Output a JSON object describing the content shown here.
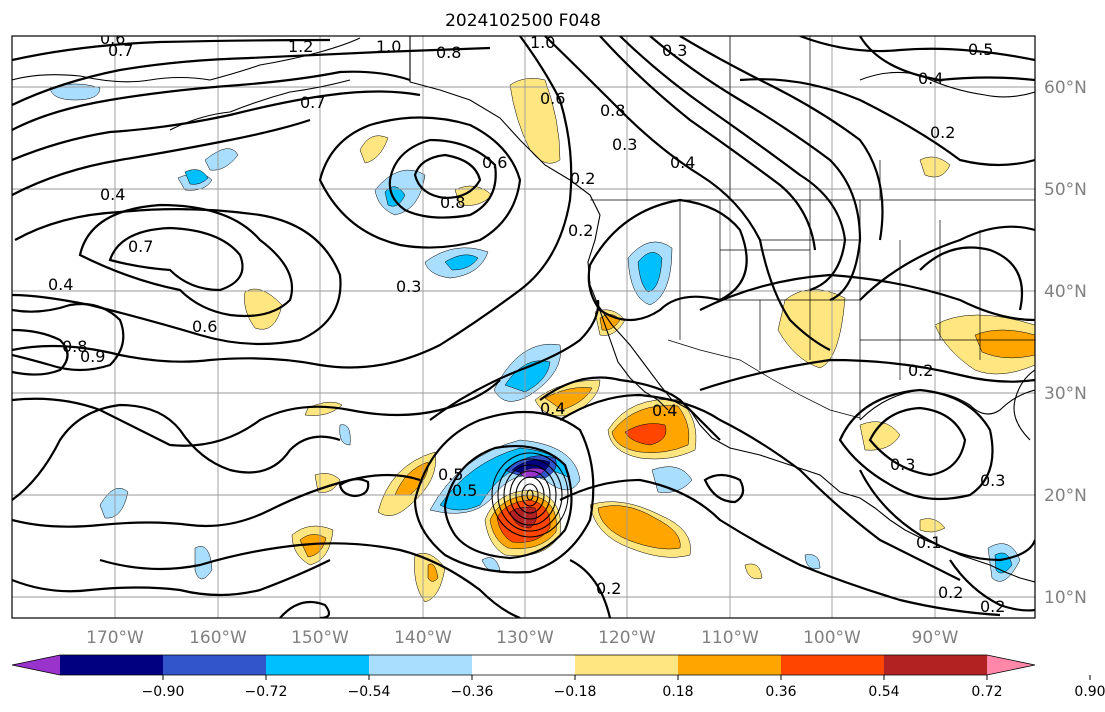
{
  "title": "2024102500 F048",
  "lon_labels": [
    "170°W",
    "160°W",
    "150°W",
    "140°W",
    "130°W",
    "120°W",
    "110°W",
    "100°W",
    "90°W"
  ],
  "lat_labels": [
    "60°N",
    "50°N",
    "40°N",
    "30°N",
    "20°N",
    "10°N"
  ],
  "colorbar": {
    "ticks": [
      "−0.90",
      "−0.72",
      "−0.54",
      "−0.36",
      "−0.18",
      "0.18",
      "0.36",
      "0.54",
      "0.72",
      "0.90"
    ],
    "colors": [
      "#9933cc",
      "#000080",
      "#3355cc",
      "#00bfff",
      "#aadeff",
      "#ffffff",
      "#ffe680",
      "#ffa500",
      "#ff4500",
      "#b22222",
      "#ff88aa"
    ]
  },
  "contour_labels": [
    {
      "text": "0.7"
    },
    {
      "text": "0.6"
    },
    {
      "text": "1.2"
    },
    {
      "text": "1.0"
    },
    {
      "text": "0.8"
    },
    {
      "text": "1.0"
    },
    {
      "text": "0.3"
    },
    {
      "text": "0.5"
    },
    {
      "text": "0.4"
    },
    {
      "text": "0.7"
    },
    {
      "text": "0.6"
    },
    {
      "text": "0.8"
    },
    {
      "text": "0.8"
    },
    {
      "text": "0.6"
    },
    {
      "text": "0.3"
    },
    {
      "text": "0.2"
    },
    {
      "text": "0.4"
    },
    {
      "text": "0.2"
    },
    {
      "text": "0.4"
    },
    {
      "text": "0.7"
    },
    {
      "text": "0.4"
    },
    {
      "text": "0.3"
    },
    {
      "text": "0.6"
    },
    {
      "text": "0.8"
    },
    {
      "text": "0.9"
    },
    {
      "text": "0.5"
    },
    {
      "text": "0.2"
    },
    {
      "text": "0.4"
    },
    {
      "text": "0.4"
    },
    {
      "text": "0.5"
    },
    {
      "text": "0.3"
    },
    {
      "text": "0.3"
    },
    {
      "text": "0.2"
    },
    {
      "text": "0.2"
    },
    {
      "text": "0.2"
    },
    {
      "text": "0.1"
    },
    {
      "text": "0.2"
    }
  ]
}
